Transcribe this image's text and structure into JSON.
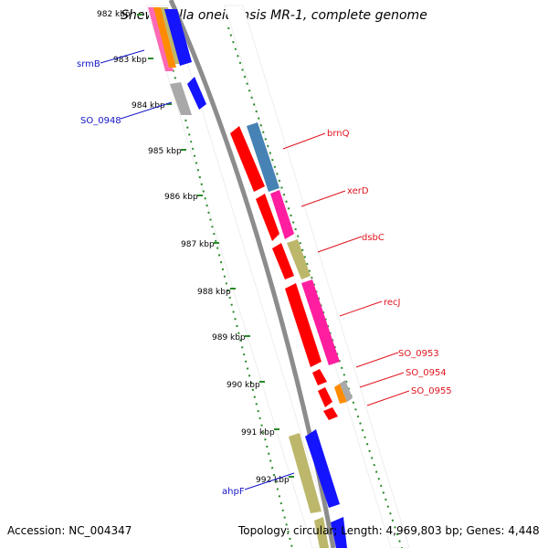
{
  "title": "Shewanella oneidensis MR-1, complete genome",
  "footer": {
    "accession": "Accession: NC_004347",
    "topology": "Topology: circular; Length: 4,969,803 bp; Genes: 4,448"
  },
  "ticks": [
    "982 kbp",
    "983 kbp",
    "984 kbp",
    "985 kbp",
    "986 kbp",
    "987 kbp",
    "988 kbp",
    "989 kbp",
    "990 kbp",
    "991 kbp",
    "992 kbp"
  ],
  "genes": {
    "reverse": [
      "srmB",
      "SO_0948",
      "ahpF"
    ],
    "forward": [
      "brnQ",
      "xerD",
      "dsbC",
      "recJ",
      "SO_0953",
      "SO_0954",
      "SO_0955"
    ]
  },
  "colors": {
    "forward_label": "#e0141e",
    "reverse_label": "#1414c8",
    "backbone": "#8c8c8c",
    "gc_track": "#2a8a2a",
    "cds": "#ff0000",
    "blast_pink": "#ff1ea0",
    "blast_blue": "#1414ff",
    "blast_olive": "#bdb76b",
    "blast_steel": "#4682b4",
    "blast_grey": "#a9a9a9",
    "blast_orange": "#ff8c00"
  }
}
